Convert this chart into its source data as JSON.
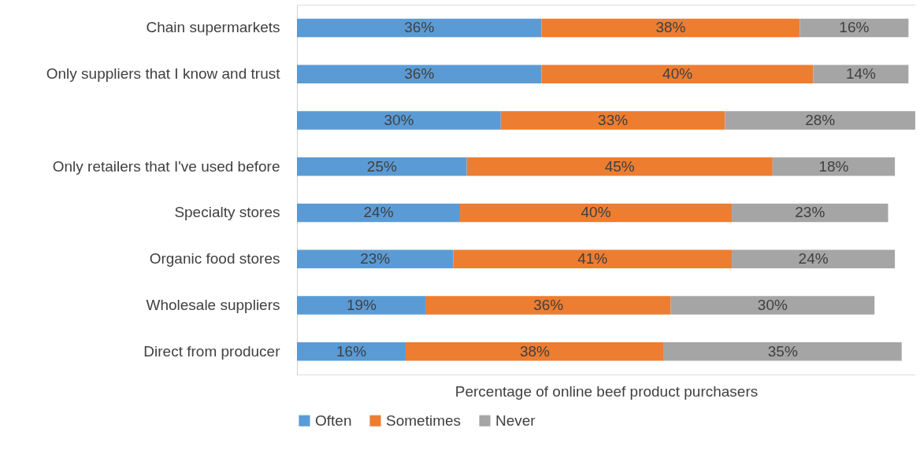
{
  "chart_data": {
    "type": "bar",
    "orientation": "horizontal",
    "stacked": true,
    "xlabel": "Percentage of online beef product purchasers",
    "categories": [
      "Chain supermarkets",
      "Only suppliers that I know and trust",
      null,
      "Only retailers that I've used before",
      "Specialty stores",
      "Organic food stores",
      "Wholesale suppliers",
      "Direct from producer"
    ],
    "series": [
      {
        "name": "Often",
        "color": "#5b9bd5",
        "values": [
          36,
          36,
          30,
          25,
          24,
          23,
          19,
          16
        ],
        "value_labels": [
          "36%",
          "36%",
          "30%",
          "25%",
          "24%",
          "23%",
          "19%",
          "16%"
        ]
      },
      {
        "name": "Sometimes",
        "color": "#ed7d31",
        "values": [
          38,
          40,
          33,
          45,
          40,
          41,
          36,
          38
        ],
        "value_labels": [
          "38%",
          "40%",
          "33%",
          "45%",
          "40%",
          "41%",
          "36%",
          "38%"
        ]
      },
      {
        "name": "Never",
        "color": "#a5a5a5",
        "values": [
          16,
          14,
          28,
          18,
          23,
          24,
          30,
          35
        ],
        "value_labels": [
          "16%",
          "14%",
          "28%",
          "18%",
          "23%",
          "24%",
          "30%",
          "35%"
        ]
      }
    ],
    "tick_labels": "y",
    "grid": false,
    "legend": "bottom"
  }
}
